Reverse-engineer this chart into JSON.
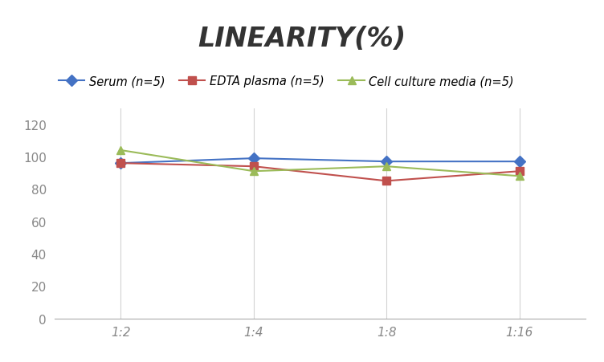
{
  "title": "LINEARITY(%)",
  "x_labels": [
    "1:2",
    "1:4",
    "1:8",
    "1:16"
  ],
  "x_positions": [
    0,
    1,
    2,
    3
  ],
  "series": [
    {
      "label": "Serum (n=5)",
      "values": [
        96,
        99,
        97,
        97
      ],
      "color": "#4472C4",
      "marker": "D",
      "linewidth": 1.5
    },
    {
      "label": "EDTA plasma (n=5)",
      "values": [
        96,
        94,
        85,
        91
      ],
      "color": "#C0504D",
      "marker": "s",
      "linewidth": 1.5
    },
    {
      "label": "Cell culture media (n=5)",
      "values": [
        104,
        91,
        94,
        88
      ],
      "color": "#9BBB59",
      "marker": "^",
      "linewidth": 1.5
    }
  ],
  "ylim": [
    0,
    130
  ],
  "yticks": [
    0,
    20,
    40,
    60,
    80,
    100,
    120
  ],
  "grid_color": "#D3D3D3",
  "background_color": "#FFFFFF",
  "title_fontsize": 24,
  "legend_fontsize": 10.5,
  "tick_fontsize": 11
}
